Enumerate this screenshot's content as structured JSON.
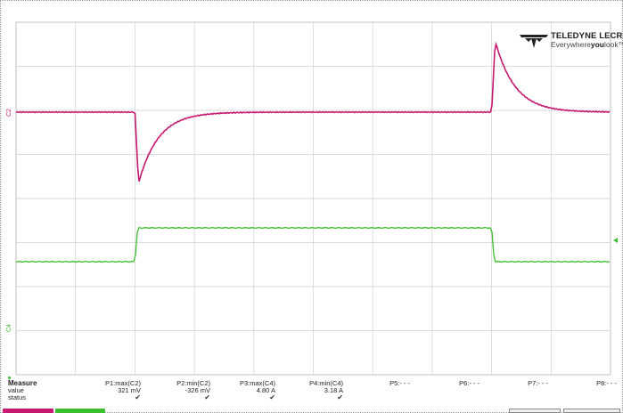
{
  "scope": {
    "brand": "TELEDYNE LECROY",
    "tagline_pre": "Everywhere",
    "tagline_bold": "you",
    "tagline_post": "look",
    "tagline_tm": "™",
    "channel_labels": {
      "c2": "C2",
      "c4": "C4"
    },
    "colors": {
      "c2": "#c8176e",
      "c4": "#3cbf2e",
      "grid": "#d0d0d0",
      "frame": "#9a9a9a"
    }
  },
  "chart_data": {
    "type": "line",
    "grid": {
      "divisions_x": 10,
      "divisions_y": 8,
      "panes": 2
    },
    "series": [
      {
        "channel": "C2",
        "baseline_div": 0,
        "events": [
          {
            "x_div": 2.0,
            "kind": "negative-spike",
            "peak_mV": -326
          },
          {
            "x_div": 8.0,
            "kind": "positive-spike",
            "peak_mV": 321
          }
        ]
      },
      {
        "channel": "C4",
        "low_level_div": 0,
        "high_level_div": 1,
        "edges": [
          {
            "x_div": 2.0,
            "direction": "rising"
          },
          {
            "x_div": 8.0,
            "direction": "falling"
          }
        ],
        "max_A": 4.8,
        "min_A": 3.18
      }
    ]
  },
  "measure": {
    "title": "Measure",
    "rows": [
      "value",
      "status"
    ],
    "columns": [
      {
        "header": "P1:max(C2)",
        "value": "321 mV",
        "status": "✔"
      },
      {
        "header": "P2:min(C2)",
        "value": "-326 mV",
        "status": "✔"
      },
      {
        "header": "P3:max(C4)",
        "value": "4.80 A",
        "status": "✔"
      },
      {
        "header": "P4:min(C4)",
        "value": "3.18 A",
        "status": "✔"
      },
      {
        "header": "P5:- - -",
        "value": "",
        "status": ""
      },
      {
        "header": "P6:- - -",
        "value": "",
        "status": ""
      },
      {
        "header": "P7:- - -",
        "value": "",
        "status": ""
      },
      {
        "header": "P8:- - -",
        "value": "",
        "status": ""
      }
    ]
  }
}
